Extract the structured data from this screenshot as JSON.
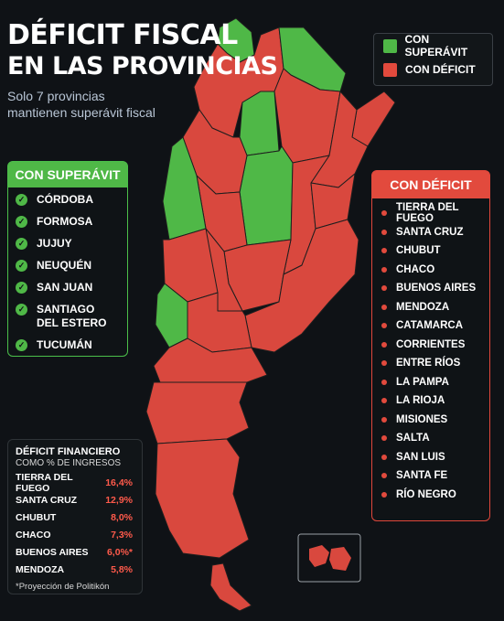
{
  "title_line1": "DÉFICIT FISCAL",
  "title_line2": "EN LAS PROVINCIAS",
  "subtitle": "Solo 7 provincias mantienen superávit fiscal",
  "legend": {
    "surplus_label": "CON SUPERÁVIT",
    "deficit_label": "CON DÉFICIT",
    "surplus_color": "#4fb847",
    "deficit_color": "#e24a3d"
  },
  "surplus_panel": {
    "header": "CON SUPERÁVIT",
    "check_icon": "check-circle-icon",
    "provinces": [
      "CÓRDOBA",
      "FORMOSA",
      "JUJUY",
      "NEUQUÉN",
      "SAN JUAN",
      "SANTIAGO DEL ESTERO",
      "TUCUMÁN"
    ]
  },
  "deficit_panel": {
    "header": "CON DÉFICIT",
    "provinces": [
      "TIERRA DEL FUEGO",
      "SANTA CRUZ",
      "CHUBUT",
      "CHACO",
      "BUENOS AIRES",
      "MENDOZA",
      "CATAMARCA",
      "CORRIENTES",
      "ENTRE RÍOS",
      "LA PAMPA",
      "LA RIOJA",
      "MISIONES",
      "SALTA",
      "SAN LUIS",
      "SANTA FE",
      "RÍO NEGRO"
    ]
  },
  "financial_deficit": {
    "header": "DÉFICIT FINANCIERO",
    "subheader": "COMO % DE INGRESOS",
    "rows": [
      {
        "province": "TIERRA DEL FUEGO",
        "value": "16,4%"
      },
      {
        "province": "SANTA CRUZ",
        "value": "12,9%"
      },
      {
        "province": "CHUBUT",
        "value": "8,0%"
      },
      {
        "province": "CHACO",
        "value": "7,3%"
      },
      {
        "province": "BUENOS AIRES",
        "value": "6,0%*"
      },
      {
        "province": "MENDOZA",
        "value": "5,8%"
      }
    ],
    "footnote": "*Proyección de Politikón"
  },
  "map": {
    "surplus_regions": [
      "JUJUY",
      "FORMOSA",
      "TUCUMÁN",
      "SANTIAGO DEL ESTERO",
      "SAN JUAN",
      "CÓRDOBA",
      "NEUQUÉN"
    ],
    "deficit_regions": [
      "SALTA",
      "CHACO",
      "MISIONES",
      "CORRIENTES",
      "CATAMARCA",
      "LA RIOJA",
      "SANTA FE",
      "ENTRE RÍOS",
      "MENDOZA",
      "SAN LUIS",
      "BUENOS AIRES",
      "LA PAMPA",
      "RÍO NEGRO",
      "CHUBUT",
      "SANTA CRUZ",
      "TIERRA DEL FUEGO"
    ]
  }
}
